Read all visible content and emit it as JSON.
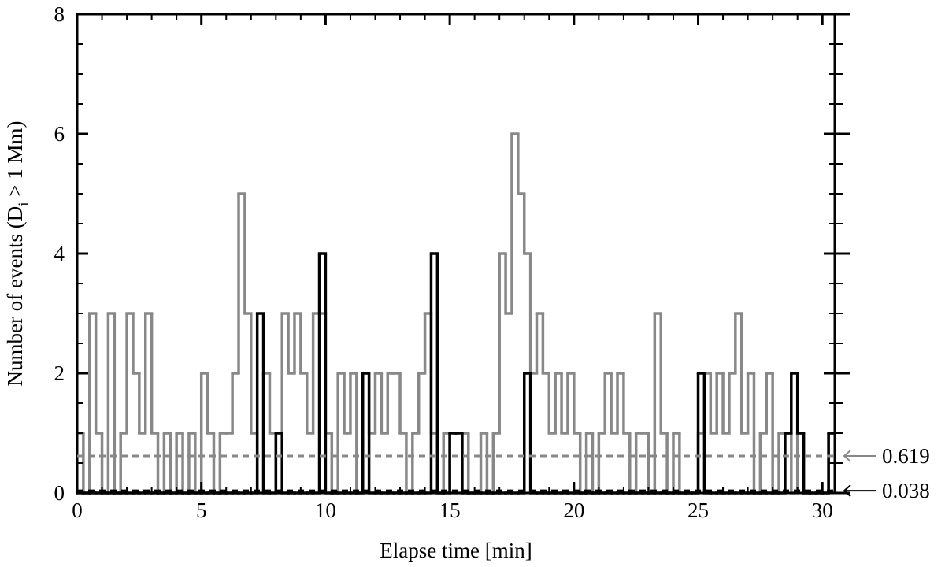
{
  "chart_data": {
    "type": "step",
    "xlabel": "Elapse time [min]",
    "ylabel": [
      "Number of events (D",
      "i",
      " > 1 Mm)"
    ],
    "xlim": [
      0,
      30.5
    ],
    "ylim": [
      0,
      8
    ],
    "xticks": [
      0,
      5,
      10,
      15,
      20,
      25,
      30
    ],
    "yticks": [
      0,
      2,
      4,
      6,
      8
    ],
    "xminorticks": [
      1,
      2,
      3,
      4,
      6,
      7,
      8,
      9,
      11,
      12,
      13,
      14,
      16,
      17,
      18,
      19,
      21,
      22,
      23,
      24,
      26,
      27,
      28,
      29
    ],
    "yminorticks": [
      0.5,
      1,
      1.5,
      2.5,
      3,
      3.5,
      4.5,
      5,
      5.5,
      6.5,
      7,
      7.5
    ],
    "x": [
      0,
      0.25,
      0.5,
      0.75,
      1,
      1.25,
      1.5,
      1.75,
      2,
      2.25,
      2.5,
      2.75,
      3,
      3.25,
      3.5,
      3.75,
      4,
      4.25,
      4.5,
      4.75,
      5,
      5.25,
      5.5,
      5.75,
      6,
      6.25,
      6.5,
      6.75,
      7,
      7.25,
      7.5,
      7.75,
      8,
      8.25,
      8.5,
      8.75,
      9,
      9.25,
      9.5,
      9.75,
      10,
      10.25,
      10.5,
      10.75,
      11,
      11.25,
      11.5,
      11.75,
      12,
      12.25,
      12.5,
      12.75,
      13,
      13.25,
      13.5,
      13.75,
      14,
      14.25,
      14.5,
      14.75,
      15,
      15.25,
      15.5,
      15.75,
      16,
      16.25,
      16.5,
      16.75,
      17,
      17.25,
      17.5,
      17.75,
      18,
      18.25,
      18.5,
      18.75,
      19,
      19.25,
      19.5,
      19.75,
      20,
      20.25,
      20.5,
      20.75,
      21,
      21.25,
      21.5,
      21.75,
      22,
      22.25,
      22.5,
      22.75,
      23,
      23.25,
      23.5,
      23.75,
      24,
      24.25,
      24.5,
      24.75,
      25,
      25.25,
      25.5,
      25.75,
      26,
      26.25,
      26.5,
      26.75,
      27,
      27.25,
      27.5,
      27.75,
      28,
      28.25,
      28.5,
      28.75,
      29,
      29.25,
      29.5,
      29.75,
      30,
      30.25
    ],
    "series": [
      {
        "color": "#888888",
        "values": [
          1,
          0,
          3,
          1,
          0,
          3,
          0,
          1,
          3,
          2,
          1,
          3,
          1,
          0,
          1,
          0,
          1,
          0,
          1,
          0,
          2,
          1,
          0,
          1,
          1,
          2,
          5,
          3,
          1,
          0,
          2,
          1,
          0,
          3,
          2,
          3,
          2,
          1,
          3,
          3,
          1,
          0,
          2,
          1,
          2,
          0,
          2,
          1,
          2,
          1,
          2,
          2,
          1,
          0,
          1,
          2,
          3,
          1,
          0,
          1,
          0,
          0,
          1,
          0,
          0,
          1,
          0,
          1,
          4,
          3,
          6,
          5,
          4,
          2,
          3,
          2,
          1,
          2,
          1,
          2,
          1,
          0,
          1,
          0,
          1,
          2,
          1,
          2,
          1,
          0,
          1,
          1,
          0,
          3,
          1,
          0,
          1,
          0,
          0,
          0,
          1,
          2,
          1,
          2,
          1,
          2,
          3,
          1,
          2,
          0,
          1,
          2,
          0,
          1,
          1,
          0,
          1,
          0,
          0,
          0,
          0,
          1
        ]
      },
      {
        "color": "#000000",
        "values": [
          0,
          0,
          0,
          0,
          0,
          0,
          0,
          0,
          0,
          0,
          0,
          0,
          0,
          0,
          0,
          0,
          0,
          0,
          0,
          0,
          0,
          0,
          0,
          0,
          0,
          0,
          0,
          0,
          0,
          3,
          0,
          0,
          1,
          0,
          0,
          0,
          0,
          0,
          0,
          4,
          0,
          0,
          0,
          0,
          0,
          0,
          2,
          0,
          0,
          0,
          0,
          0,
          0,
          0,
          0,
          0,
          0,
          4,
          0,
          0,
          1,
          1,
          0,
          0,
          0,
          0,
          0,
          0,
          0,
          0,
          0,
          0,
          2,
          0,
          0,
          0,
          0,
          0,
          0,
          0,
          0,
          0,
          0,
          0,
          0,
          0,
          0,
          0,
          0,
          0,
          0,
          0,
          0,
          0,
          0,
          0,
          0,
          0,
          0,
          0,
          2,
          0,
          0,
          0,
          0,
          0,
          0,
          0,
          0,
          0,
          0,
          0,
          0,
          0,
          1,
          2,
          1,
          0,
          0,
          0,
          0,
          1
        ]
      }
    ],
    "hlines": [
      {
        "value": 0.619,
        "color": "#888888"
      },
      {
        "value": 0.038,
        "color": "#000000"
      }
    ]
  }
}
